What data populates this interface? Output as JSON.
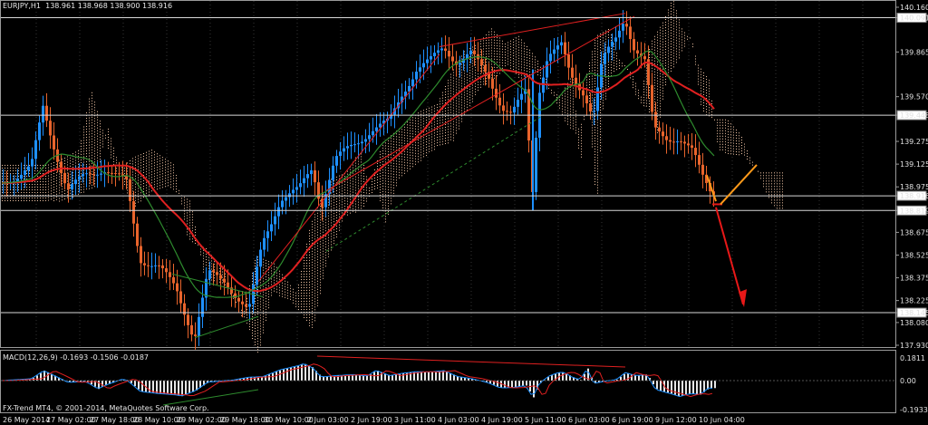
{
  "header": {
    "symbol_info": "EURJPY,H1  138.961 138.968 138.900 138.916"
  },
  "macd_header": "MACD(12,26,9) -0.1693 -0.1506 -0.0187",
  "copyright": "FX-Trend MT4, © 2001-2014, MetaQuotes Software Corp.",
  "price_axis": {
    "labels": [
      "140.160",
      "140.091",
      "139.865",
      "139.570",
      "139.448",
      "139.275",
      "139.125",
      "138.975",
      "138.916",
      "138.819",
      "138.675",
      "138.525",
      "138.375",
      "138.225",
      "138.145",
      "138.080",
      "137.930"
    ],
    "marked_levels": [
      {
        "value": "140.091",
        "style": "box"
      },
      {
        "value": "139.448",
        "style": "box"
      },
      {
        "value": "138.916",
        "style": "box"
      },
      {
        "value": "138.819",
        "style": "box"
      },
      {
        "value": "138.145",
        "style": "box"
      }
    ]
  },
  "macd_axis": {
    "labels": [
      "0.1811",
      "0.00",
      "-0.1933"
    ]
  },
  "time_axis": {
    "labels": [
      "26 May 2014",
      "27 May 02:00",
      "27 May 18:00",
      "28 May 10:00",
      "29 May 02:00",
      "29 May 18:00",
      "30 May 10:00",
      "2 Jun 03:00",
      "2 Jun 19:00",
      "3 Jun 11:00",
      "4 Jun 03:00",
      "4 Jun 19:00",
      "5 Jun 11:00",
      "6 Jun 03:00",
      "6 Jun 19:00",
      "9 Jun 12:00",
      "10 Jun 04:00"
    ]
  },
  "colors": {
    "bull_candle": "#1e90ff",
    "bear_candle": "#e8642c",
    "ma_red": "#e02020",
    "ma_green": "#2e8b2e",
    "cloud": "#f5c8a8",
    "arrow_down": "#e81818",
    "arrow_up": "#ff9a1a",
    "macd_hist": "#e6e6e6",
    "macd_line": "#1e90ff",
    "signal_line": "#e02020"
  }
}
